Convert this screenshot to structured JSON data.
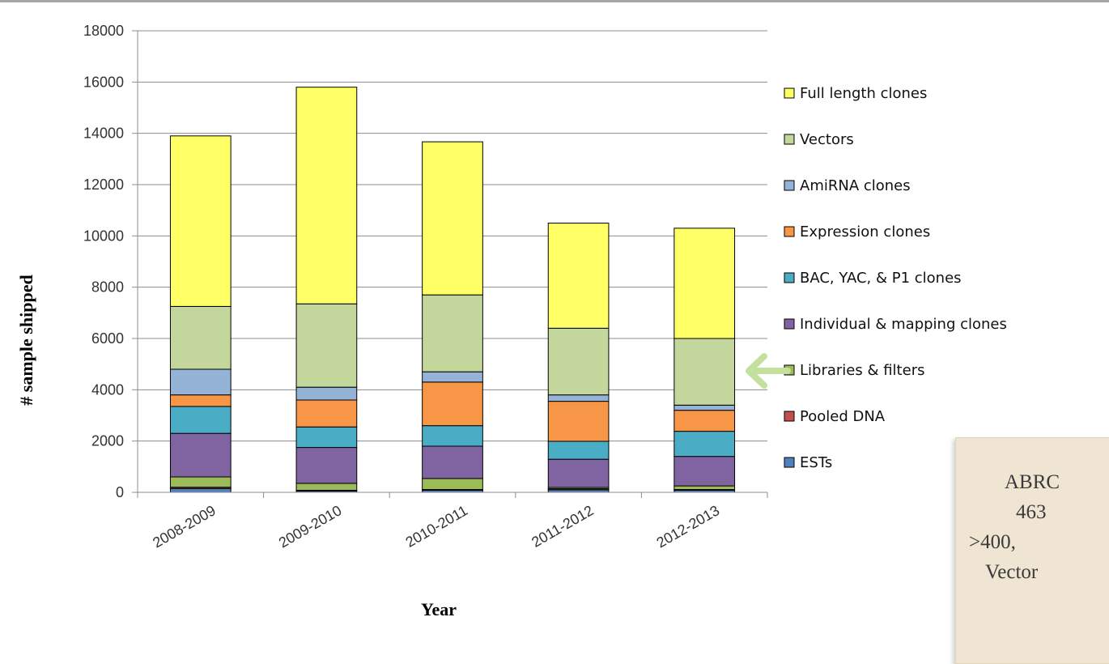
{
  "chart_data": {
    "type": "bar",
    "stacked": true,
    "title": "",
    "xlabel": "Year",
    "ylabel": "# sample shipped",
    "ylim": [
      0,
      18000
    ],
    "yticks": [
      0,
      2000,
      4000,
      6000,
      8000,
      10000,
      12000,
      14000,
      16000,
      18000
    ],
    "grid": true,
    "legend_position": "right",
    "categories": [
      "2008-2009",
      "2009-2010",
      "2010-2011",
      "2011-2012",
      "2012-2013"
    ],
    "series": [
      {
        "name": "ESTs",
        "color": "#4f81bd",
        "values": [
          150,
          50,
          80,
          100,
          80
        ]
      },
      {
        "name": "Pooled DNA",
        "color": "#c0504d",
        "values": [
          50,
          30,
          30,
          40,
          30
        ]
      },
      {
        "name": "Libraries & filters",
        "color": "#9bbb59",
        "values": [
          400,
          270,
          430,
          50,
          140
        ]
      },
      {
        "name": "Individual & mapping clones",
        "color": "#8064a2",
        "values": [
          1700,
          1400,
          1260,
          1100,
          1150
        ]
      },
      {
        "name": "BAC, YAC, & P1 clones",
        "color": "#4bacc6",
        "values": [
          1050,
          800,
          800,
          700,
          980
        ]
      },
      {
        "name": "Expression clones",
        "color": "#f79646",
        "values": [
          450,
          1050,
          1700,
          1560,
          820
        ]
      },
      {
        "name": "AmiRNA clones",
        "color": "#95b3d7",
        "values": [
          1000,
          500,
          400,
          250,
          200
        ]
      },
      {
        "name": "Vectors",
        "color": "#c3d69b",
        "values": [
          2450,
          3250,
          3000,
          2600,
          2600
        ]
      },
      {
        "name": "Full length clones",
        "color": "#ffff66",
        "values": [
          6650,
          8450,
          5970,
          4100,
          4300
        ]
      }
    ]
  },
  "legend_order": [
    "Full length clones",
    "Vectors",
    "AmiRNA clones",
    "Expression clones",
    "BAC, YAC, & P1 clones",
    "Individual & mapping clones",
    "Libraries & filters",
    "Pooled DNA",
    "ESTs"
  ],
  "annotation": {
    "arrow_color": "#c3e09c",
    "lines": [
      "ABRC",
      "463",
      ">400,",
      "Vector"
    ]
  }
}
